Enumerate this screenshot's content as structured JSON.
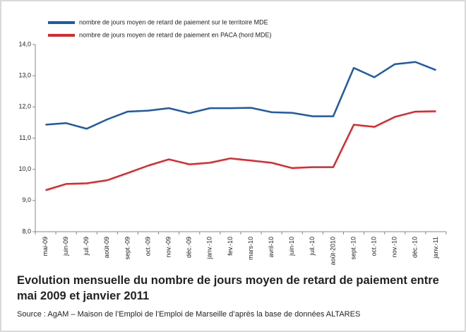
{
  "chart_data": {
    "type": "line",
    "title": "Evolution mensuelle du nombre de jours moyen de retard de paiement entre mai 2009 et janvier 2011",
    "source": "Source : AgAM – Maison de l’Emploi de l’Emploi de Marseille d’après la base de données ALTARES",
    "categories": [
      "mai-09",
      "juin-09",
      "juil.-09",
      "août-09",
      "sept.-09",
      "oct.-09",
      "nov.-09",
      "déc.-09",
      "janv.-10",
      "fev.-10",
      "mars-10",
      "avril-10",
      "juin-10",
      "juil.-10",
      "août-2010",
      "sept.-10",
      "oct.-10",
      "nov.-10",
      "déc.-10",
      "janv.-11"
    ],
    "series": [
      {
        "name": "nombre de jours moyen de retard de paiement sur le territoire MDE",
        "color": "#1f5aa6",
        "values": [
          11.43,
          11.48,
          11.3,
          11.6,
          11.85,
          11.88,
          11.96,
          11.8,
          11.96,
          11.96,
          11.97,
          11.83,
          11.81,
          11.7,
          11.7,
          13.25,
          12.95,
          13.37,
          13.44,
          13.18
        ]
      },
      {
        "name": "nombre de jours moyen de retard de paiement en PACA (hord MDE)",
        "color": "#e3262b",
        "values": [
          9.33,
          9.53,
          9.55,
          9.65,
          9.88,
          10.12,
          10.32,
          10.16,
          10.21,
          10.35,
          10.28,
          10.21,
          10.04,
          10.07,
          10.07,
          11.43,
          11.36,
          11.68,
          11.85,
          11.86
        ]
      }
    ],
    "ylim": [
      8,
      14
    ],
    "yticks": [
      {
        "value": 8,
        "label": "8,0"
      },
      {
        "value": 9,
        "label": "9,0"
      },
      {
        "value": 10,
        "label": "10,0"
      },
      {
        "value": 11,
        "label": "11,0"
      },
      {
        "value": 12,
        "label": "12,0"
      },
      {
        "value": 13,
        "label": "13,0"
      },
      {
        "value": 14,
        "label": "14,0"
      }
    ],
    "grid": false
  }
}
